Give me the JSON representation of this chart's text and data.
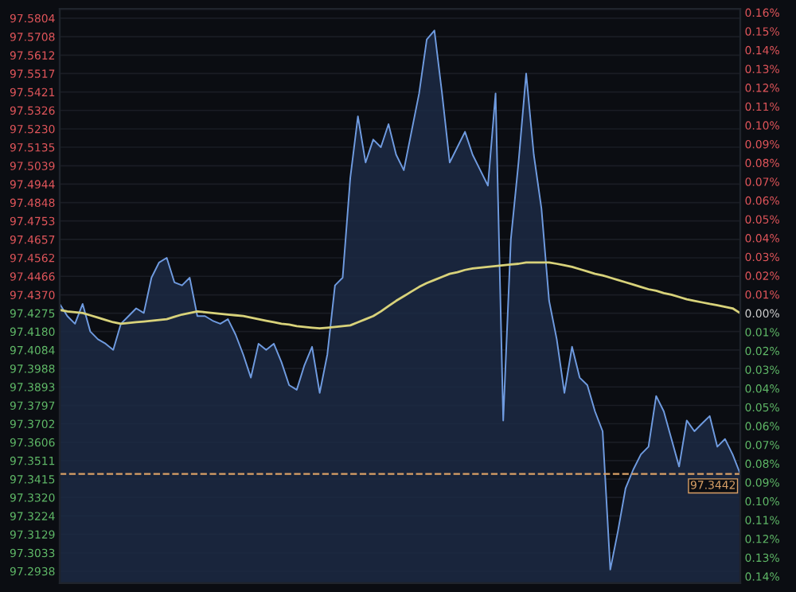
{
  "chart_data": {
    "type": "area",
    "categories": [
      null,
      null,
      null,
      null,
      null,
      null,
      null,
      null,
      null,
      null,
      null,
      null,
      null,
      null,
      null,
      null,
      null,
      null,
      null,
      null,
      null,
      null,
      null,
      null,
      null,
      null,
      null,
      null,
      null,
      null,
      null,
      null,
      null,
      null,
      null,
      null,
      null,
      null,
      null,
      null,
      null,
      null,
      null,
      null,
      null,
      null,
      null,
      null,
      null,
      null,
      null,
      null,
      null,
      null,
      null,
      null,
      null,
      null,
      null,
      null,
      null,
      null,
      null,
      null,
      null,
      null,
      null,
      null,
      null,
      null,
      null,
      null,
      null,
      null,
      null,
      null,
      null,
      null,
      null,
      null,
      null,
      null,
      null,
      null,
      null,
      null,
      null,
      null,
      null,
      null
    ],
    "series": [
      {
        "color": "#6f9be0",
        "values": [
          97.4323,
          97.426,
          97.422,
          97.4323,
          97.418,
          97.414,
          97.4117,
          97.4085,
          97.422,
          97.426,
          97.43,
          97.4276,
          97.4459,
          97.4538,
          97.4562,
          97.4435,
          97.4419,
          97.4459,
          97.426,
          97.426,
          97.4236,
          97.422,
          97.4244,
          97.4164,
          97.4061,
          97.3941,
          97.4117,
          97.4085,
          97.4117,
          97.4021,
          97.3902,
          97.3878,
          97.4005,
          97.4101,
          97.3862,
          97.4061,
          97.4419,
          97.4459,
          97.4976,
          97.5295,
          97.5056,
          97.5175,
          97.5135,
          97.5255,
          97.5096,
          97.5016,
          97.5215,
          97.5414,
          97.5693,
          97.574,
          97.5414,
          97.5056,
          97.5135,
          97.5215,
          97.5096,
          97.5016,
          97.4936,
          97.5414,
          97.3719,
          97.4658,
          97.5056,
          97.5517,
          97.5096,
          97.4817,
          97.4339,
          97.414,
          97.3862,
          97.4101,
          97.3941,
          97.3902,
          97.3766,
          97.3663,
          97.2946,
          97.3145,
          97.3368,
          97.3464,
          97.3543,
          97.3583,
          97.3846,
          97.3766,
          97.3623,
          97.348,
          97.3719,
          97.3663,
          97.3703,
          97.3742,
          97.3583,
          97.3623,
          97.3543,
          97.3442
        ]
      },
      {
        "type": "line",
        "color": "#d8d27a",
        "values": [
          97.4292,
          97.4284,
          97.428,
          97.4276,
          97.4264,
          97.4252,
          97.424,
          97.4228,
          97.422,
          97.4224,
          97.4228,
          97.4232,
          97.4236,
          97.424,
          97.4244,
          97.4256,
          97.4268,
          97.4276,
          97.4284,
          97.428,
          97.4276,
          97.4272,
          97.4268,
          97.4264,
          97.426,
          97.4252,
          97.4244,
          97.4236,
          97.4228,
          97.422,
          97.4216,
          97.4208,
          97.4204,
          97.42,
          97.4196,
          97.42,
          97.4204,
          97.4208,
          97.4212,
          97.4228,
          97.4244,
          97.426,
          97.4284,
          97.4312,
          97.4339,
          97.4363,
          97.4387,
          97.4411,
          97.4431,
          97.4447,
          97.4463,
          97.4479,
          97.4487,
          97.4499,
          97.4507,
          97.4511,
          97.4515,
          97.4519,
          97.4523,
          97.4527,
          97.4531,
          97.4538,
          97.4538,
          97.4538,
          97.4538,
          97.4531,
          97.4523,
          97.4515,
          97.4503,
          97.4491,
          97.4479,
          97.4471,
          97.4459,
          97.4447,
          97.4435,
          97.4423,
          97.4411,
          97.4399,
          97.4391,
          97.4379,
          97.4371,
          97.4359,
          97.4347,
          97.4339,
          97.4331,
          97.4323,
          97.4316,
          97.4308,
          97.43,
          97.4275
        ]
      }
    ],
    "ylim": [
      97.2876,
      97.5852
    ],
    "yticks": [
      97.5804,
      97.5708,
      97.5612,
      97.5517,
      97.5421,
      97.5326,
      {
        "value": 97.523,
        "label": "97.5230"
      },
      97.5135,
      97.5039,
      97.4944,
      97.4848,
      97.4753,
      97.4657,
      97.4562,
      97.4466,
      {
        "value": 97.437,
        "label": "97.4370"
      },
      97.4275,
      {
        "value": 97.418,
        "label": "97.4180"
      },
      97.4084,
      97.3988,
      97.3893,
      97.3797,
      97.3702,
      97.3606,
      97.3511,
      97.3415,
      {
        "value": 97.332,
        "label": "97.3320"
      },
      97.3224,
      97.3129,
      97.3033,
      97.2938
    ],
    "y2lim": [
      -0.1436,
      0.1619
    ],
    "y2ticks": [
      {
        "value": 0.16,
        "label": "0.16%"
      },
      {
        "value": 0.15,
        "label": "0.15%"
      },
      {
        "value": 0.14,
        "label": "0.14%"
      },
      {
        "value": 0.13,
        "label": "0.13%"
      },
      {
        "value": 0.12,
        "label": "0.12%"
      },
      {
        "value": 0.11,
        "label": "0.11%"
      },
      {
        "value": 0.1,
        "label": "0.10%"
      },
      {
        "value": 0.09,
        "label": "0.09%"
      },
      {
        "value": 0.08,
        "label": "0.08%"
      },
      {
        "value": 0.07,
        "label": "0.07%"
      },
      {
        "value": 0.06,
        "label": "0.06%"
      },
      {
        "value": 0.05,
        "label": "0.05%"
      },
      {
        "value": 0.04,
        "label": "0.04%"
      },
      {
        "value": 0.03,
        "label": "0.03%"
      },
      {
        "value": 0.02,
        "label": "0.02%"
      },
      {
        "value": 0.01,
        "label": "0.01%"
      },
      {
        "value": 0,
        "label": "0.00%"
      },
      {
        "value": -0.01,
        "label": "0.01%"
      },
      {
        "value": -0.02,
        "label": "0.02%"
      },
      {
        "value": -0.03,
        "label": "0.03%"
      },
      {
        "value": -0.04,
        "label": "0.04%"
      },
      {
        "value": -0.05,
        "label": "0.05%"
      },
      {
        "value": -0.06,
        "label": "0.06%"
      },
      {
        "value": -0.07,
        "label": "0.07%"
      },
      {
        "value": -0.08,
        "label": "0.08%"
      },
      {
        "value": -0.09,
        "label": "0.09%"
      },
      {
        "value": -0.1,
        "label": "0.10%"
      },
      {
        "value": -0.11,
        "label": "0.11%"
      },
      {
        "value": -0.12,
        "label": "0.12%"
      },
      {
        "value": -0.13,
        "label": "0.13%"
      },
      {
        "value": -0.14,
        "label": "0.14%"
      }
    ],
    "ref_lines": [
      {
        "axis": "y",
        "value": 97.3442,
        "label": "97.3442",
        "color": "#d9a066",
        "line_style": "dashed"
      }
    ],
    "grid": "y"
  }
}
